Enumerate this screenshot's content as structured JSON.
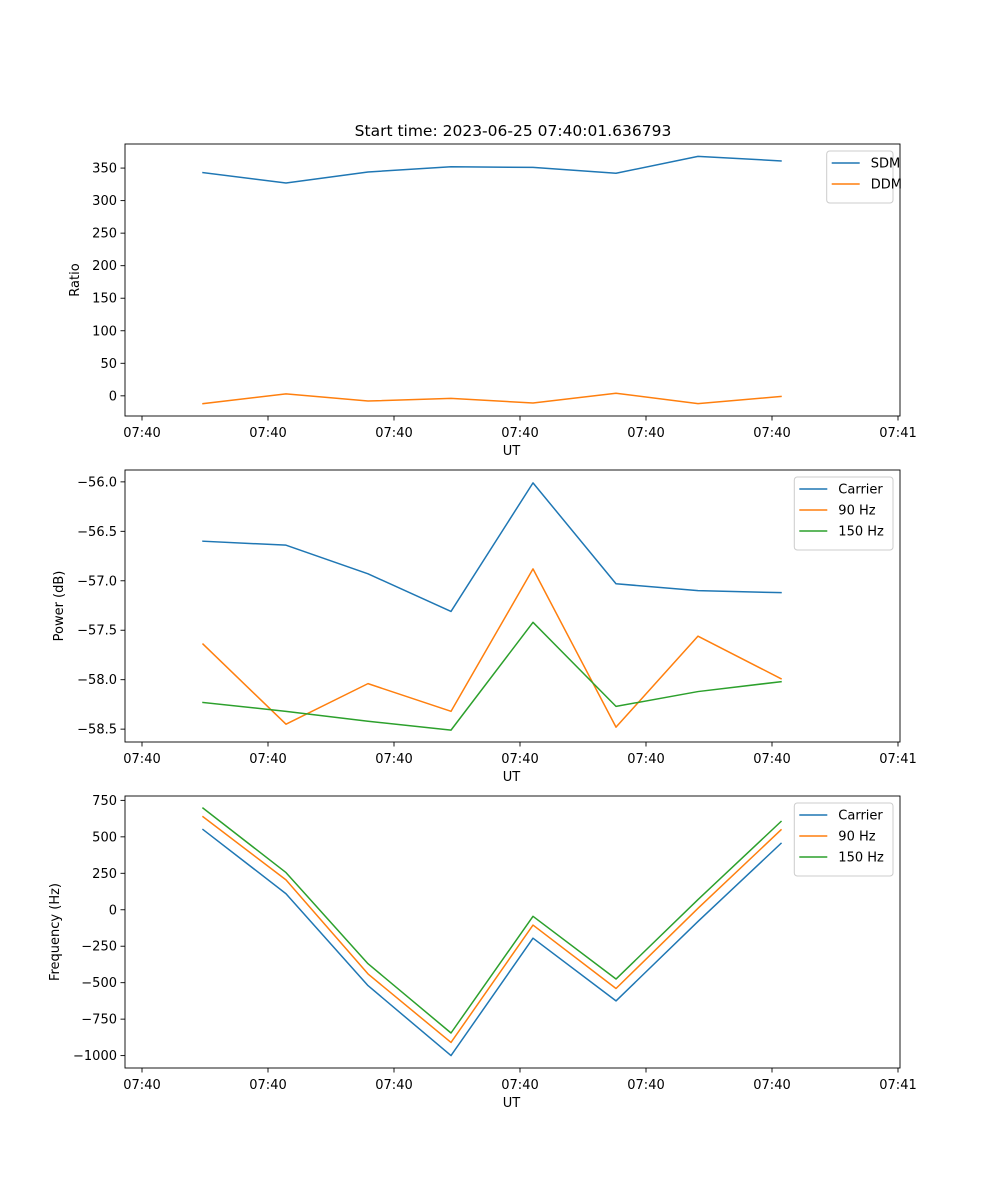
{
  "figure": {
    "title": "Start time: 2023-06-25 07:40:01.636793"
  },
  "chart_data": [
    {
      "type": "line",
      "xlabel": "UT",
      "ylabel": "Ratio",
      "x_tick_labels": [
        "07:40",
        "07:40",
        "07:40",
        "07:40",
        "07:40",
        "07:40",
        "07:41"
      ],
      "y_ticks": [
        0,
        50,
        100,
        150,
        200,
        250,
        300,
        350
      ],
      "y_tick_labels": [
        "0",
        "50",
        "100",
        "150",
        "200",
        "250",
        "300",
        "350"
      ],
      "ylim": [
        -31,
        387
      ],
      "legend_placement": "upper-right",
      "series": [
        {
          "name": "SDM",
          "color": "#1f77b4",
          "values": [
            343,
            327,
            344,
            352,
            351,
            342,
            368,
            361
          ]
        },
        {
          "name": "DDM",
          "color": "#ff7f0e",
          "values": [
            -12,
            3,
            -8,
            -4,
            -11,
            4,
            -12,
            -1
          ]
        }
      ]
    },
    {
      "type": "line",
      "xlabel": "UT",
      "ylabel": "Power (dB)",
      "x_tick_labels": [
        "07:40",
        "07:40",
        "07:40",
        "07:40",
        "07:40",
        "07:40",
        "07:41"
      ],
      "y_ticks": [
        -58.5,
        -58.0,
        -57.5,
        -57.0,
        -56.5,
        -56.0
      ],
      "y_tick_labels": [
        "−58.5",
        "−58.0",
        "−57.5",
        "−57.0",
        "−56.5",
        "−56.0"
      ],
      "ylim": [
        -58.63,
        -55.88
      ],
      "legend_placement": "upper-right",
      "series": [
        {
          "name": "Carrier",
          "color": "#1f77b4",
          "values": [
            -56.6,
            -56.64,
            -56.93,
            -57.31,
            -56.01,
            -57.03,
            -57.1,
            -57.12
          ]
        },
        {
          "name": "90 Hz",
          "color": "#ff7f0e",
          "values": [
            -57.64,
            -58.45,
            -58.04,
            -58.32,
            -56.88,
            -58.48,
            -57.56,
            -57.99
          ]
        },
        {
          "name": "150 Hz",
          "color": "#2ca02c",
          "values": [
            -58.23,
            -58.32,
            -58.42,
            -58.51,
            -57.42,
            -58.27,
            -58.12,
            -58.02
          ]
        }
      ]
    },
    {
      "type": "line",
      "xlabel": "UT",
      "ylabel": "Frequency (Hz)",
      "x_tick_labels": [
        "07:40",
        "07:40",
        "07:40",
        "07:40",
        "07:40",
        "07:40",
        "07:41"
      ],
      "y_ticks": [
        -1000,
        -750,
        -500,
        -250,
        0,
        250,
        500,
        750
      ],
      "y_tick_labels": [
        "−1000",
        "−750",
        "−500",
        "−250",
        "0",
        "250",
        "500",
        "750"
      ],
      "ylim": [
        -1085,
        780
      ],
      "legend_placement": "upper-right",
      "series": [
        {
          "name": "Carrier",
          "color": "#1f77b4",
          "values": [
            550,
            110,
            -520,
            -1000,
            -195,
            -625,
            -80,
            455
          ]
        },
        {
          "name": "90 Hz",
          "color": "#ff7f0e",
          "values": [
            638,
            205,
            -440,
            -910,
            -105,
            -540,
            10,
            548
          ]
        },
        {
          "name": "150 Hz",
          "color": "#2ca02c",
          "values": [
            697,
            255,
            -370,
            -845,
            -45,
            -475,
            70,
            605
          ]
        }
      ]
    }
  ]
}
